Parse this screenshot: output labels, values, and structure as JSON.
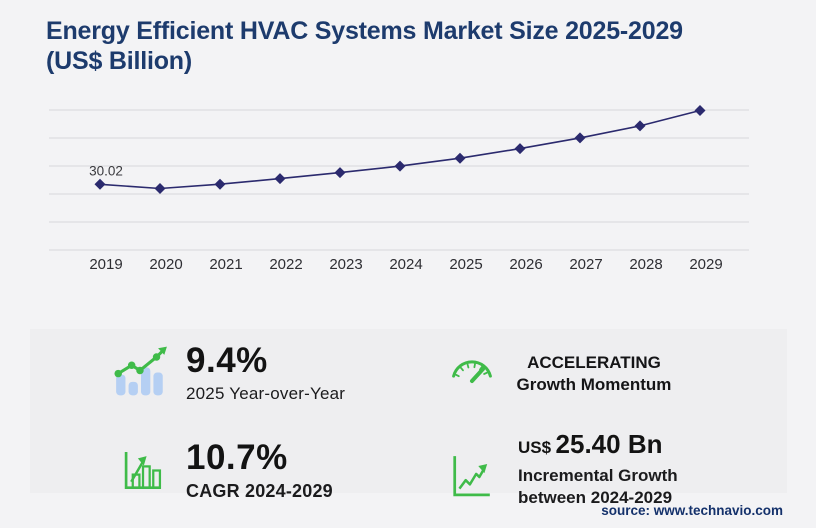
{
  "header": {
    "title_line1": "Energy Efficient HVAC Systems Market Size 2025-2029",
    "title_line2": "(US$ Billion)"
  },
  "chart_data": {
    "type": "line",
    "title": "Energy Efficient HVAC Systems Market Size 2025-2029 (US$ Billion)",
    "x": [
      "2019",
      "2020",
      "2021",
      "2022",
      "2023",
      "2024",
      "2025",
      "2026",
      "2027",
      "2028",
      "2029"
    ],
    "series": [
      {
        "name": "Market size (US$ Billion)",
        "values": [
          30.02,
          28.1,
          30.05,
          32.6,
          35.35,
          38.34,
          41.94,
          46.35,
          51.24,
          56.68,
          63.74
        ]
      }
    ],
    "shown_data_label": {
      "x": "2019",
      "text": "30.02"
    },
    "ylim": [
      0,
      74
    ],
    "grid": "horizontal",
    "legend": "none",
    "marker": "diamond",
    "line_color": "#2b2a6e",
    "gridline_color": "#d7d7da",
    "axis_label_color": "#2e2e33"
  },
  "stats": {
    "yoy": {
      "value": "9.4%",
      "label": "2025 Year-over-Year",
      "icon": "bar-chart-trend-icon"
    },
    "momentum": {
      "value": "ACCELERATING",
      "label": "Growth Momentum",
      "icon": "speedometer-icon"
    },
    "cagr": {
      "value": "10.7%",
      "label": "CAGR 2024-2029",
      "icon": "growth-bars-icon"
    },
    "incremental": {
      "prefix": "US$",
      "value": "25.40 Bn",
      "label_line1": "Incremental Growth",
      "label_line2": "between 2024-2029",
      "icon": "rising-arrow-icon"
    }
  },
  "source": "source: www.technavio.com",
  "colors": {
    "title": "#1d3b6d",
    "accent_green": "#3fbb49",
    "icon_bar_blue": "#b5cff3",
    "panel": "#eeeef0",
    "background": "#f3f3f5"
  }
}
